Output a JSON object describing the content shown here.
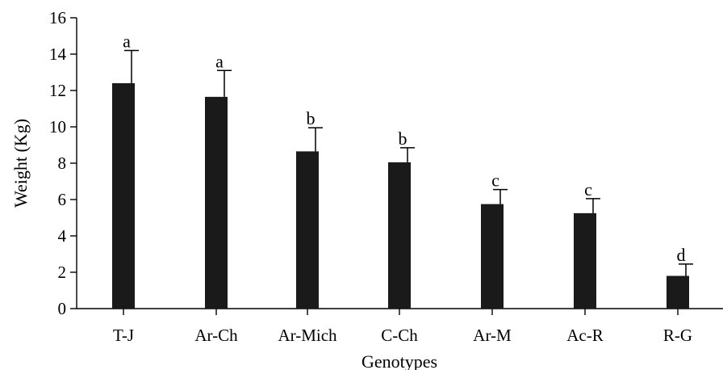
{
  "chart_data": {
    "type": "bar",
    "title": "",
    "xlabel": "Genotypes",
    "ylabel": "Weight (Kg)",
    "ylim": [
      0,
      16
    ],
    "yticks": [
      0,
      2,
      4,
      6,
      8,
      10,
      12,
      14,
      16
    ],
    "ytick_labels": [
      "0",
      "2",
      "4",
      "6",
      "8",
      "10",
      "12",
      "14",
      "16"
    ],
    "categories": [
      "T-J",
      "Ar-Ch",
      "Ar-Mich",
      "C-Ch",
      "Ar-M",
      "Ac-R",
      "R-G"
    ],
    "values": [
      12.4,
      11.65,
      8.65,
      8.05,
      5.75,
      5.25,
      1.8
    ],
    "errors": [
      1.8,
      1.45,
      1.3,
      0.8,
      0.8,
      0.8,
      0.65
    ],
    "significance_letters": [
      "a",
      "a",
      "b",
      "b",
      "c",
      "c",
      "d"
    ],
    "bar_color": "#1a1a1a",
    "grid": false,
    "legend": "none"
  }
}
